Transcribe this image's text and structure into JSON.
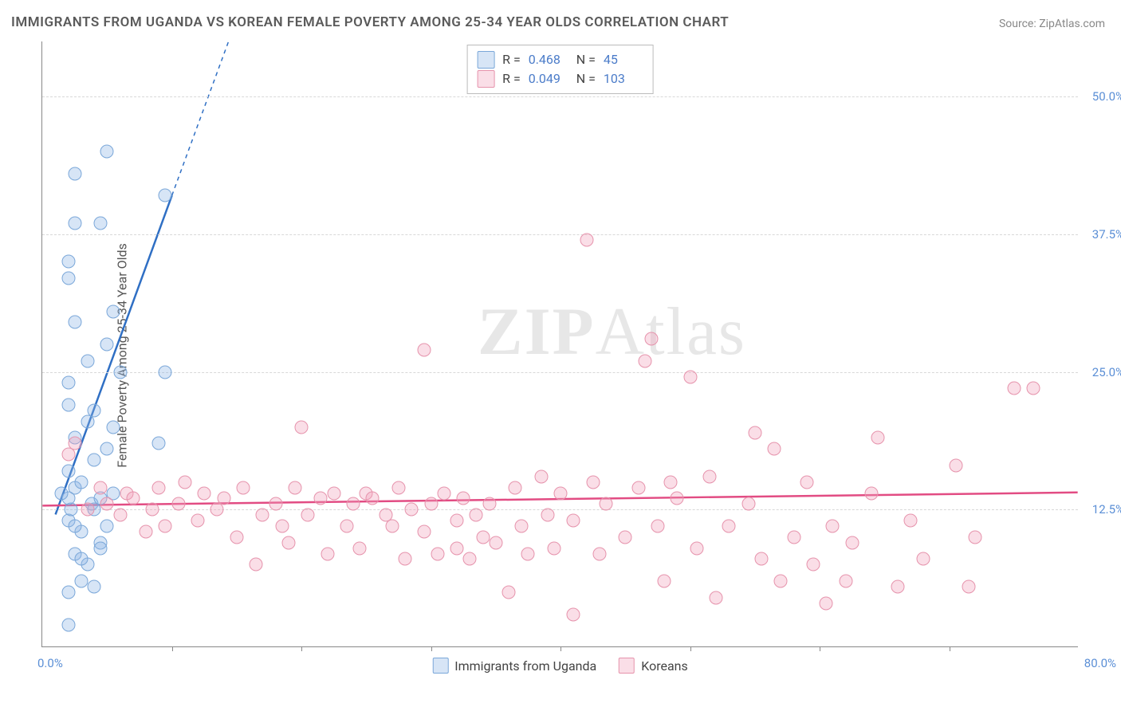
{
  "title": "IMMIGRANTS FROM UGANDA VS KOREAN FEMALE POVERTY AMONG 25-34 YEAR OLDS CORRELATION CHART",
  "source": "Source: ZipAtlas.com",
  "y_axis_label": "Female Poverty Among 25-34 Year Olds",
  "watermark": {
    "bold": "ZIP",
    "rest": "Atlas"
  },
  "chart": {
    "type": "scatter",
    "xlim": [
      0,
      80
    ],
    "ylim": [
      0,
      55
    ],
    "x_tick_positions": [
      10,
      20,
      30,
      40,
      50,
      60,
      70
    ],
    "y_gridlines": [
      12.5,
      25.0,
      37.5,
      50.0
    ],
    "y_tick_labels": [
      "12.5%",
      "25.0%",
      "37.5%",
      "50.0%"
    ],
    "x_start_label": "0.0%",
    "x_end_label": "80.0%",
    "background_color": "#ffffff",
    "grid_color": "#d8d8d8",
    "marker_radius": 8.5,
    "series": [
      {
        "name": "Immigrants from Uganda",
        "fill": "rgba(140,180,230,0.35)",
        "stroke": "#7aa7d9",
        "trend_color": "#2f6fc4",
        "trend": {
          "x1": 1.0,
          "y1": 12.0,
          "x2": 10.0,
          "y2": 41.0,
          "dashed_ext_x": 15.0,
          "dashed_ext_y": 57.0
        },
        "R": "0.468",
        "N": "45",
        "points": [
          [
            2.0,
            2.0
          ],
          [
            2.0,
            5.0
          ],
          [
            3.0,
            6.0
          ],
          [
            4.0,
            5.5
          ],
          [
            3.5,
            7.5
          ],
          [
            2.5,
            8.5
          ],
          [
            4.5,
            9.5
          ],
          [
            3.0,
            10.5
          ],
          [
            2.0,
            11.5
          ],
          [
            5.0,
            11.0
          ],
          [
            2.2,
            12.5
          ],
          [
            3.8,
            13.0
          ],
          [
            2.0,
            13.5
          ],
          [
            4.5,
            13.5
          ],
          [
            2.5,
            14.5
          ],
          [
            5.5,
            14.0
          ],
          [
            3.0,
            15.0
          ],
          [
            2.0,
            16.0
          ],
          [
            4.0,
            17.0
          ],
          [
            5.0,
            18.0
          ],
          [
            9.0,
            18.5
          ],
          [
            2.5,
            19.0
          ],
          [
            3.5,
            20.5
          ],
          [
            4.0,
            21.5
          ],
          [
            2.0,
            22.0
          ],
          [
            2.0,
            24.0
          ],
          [
            3.5,
            26.0
          ],
          [
            6.0,
            25.0
          ],
          [
            9.5,
            25.0
          ],
          [
            5.0,
            27.5
          ],
          [
            2.5,
            29.5
          ],
          [
            5.5,
            30.5
          ],
          [
            2.0,
            33.5
          ],
          [
            2.0,
            35.0
          ],
          [
            2.5,
            38.5
          ],
          [
            4.5,
            38.5
          ],
          [
            9.5,
            41.0
          ],
          [
            2.5,
            43.0
          ],
          [
            5.0,
            45.0
          ],
          [
            4.5,
            9.0
          ],
          [
            3.0,
            8.0
          ],
          [
            2.5,
            11.0
          ],
          [
            4.0,
            12.5
          ],
          [
            1.5,
            14.0
          ],
          [
            5.5,
            20.0
          ]
        ]
      },
      {
        "name": "Koreans",
        "fill": "rgba(240,160,185,0.35)",
        "stroke": "#e693ac",
        "trend_color": "#e24c83",
        "trend": {
          "x1": 0.0,
          "y1": 12.8,
          "x2": 80.0,
          "y2": 14.0
        },
        "R": "0.049",
        "N": "103",
        "points": [
          [
            2.0,
            17.5
          ],
          [
            2.5,
            18.5
          ],
          [
            3.5,
            12.5
          ],
          [
            4.5,
            14.5
          ],
          [
            5.0,
            13.0
          ],
          [
            6.0,
            12.0
          ],
          [
            6.5,
            14.0
          ],
          [
            7.0,
            13.5
          ],
          [
            8.0,
            10.5
          ],
          [
            8.5,
            12.5
          ],
          [
            9.0,
            14.5
          ],
          [
            9.5,
            11.0
          ],
          [
            10.5,
            13.0
          ],
          [
            11.0,
            15.0
          ],
          [
            12.0,
            11.5
          ],
          [
            12.5,
            14.0
          ],
          [
            13.5,
            12.5
          ],
          [
            14.0,
            13.5
          ],
          [
            15.0,
            10.0
          ],
          [
            15.5,
            14.5
          ],
          [
            16.5,
            7.5
          ],
          [
            17.0,
            12.0
          ],
          [
            18.0,
            13.0
          ],
          [
            18.5,
            11.0
          ],
          [
            19.0,
            9.5
          ],
          [
            19.5,
            14.5
          ],
          [
            20.0,
            20.0
          ],
          [
            20.5,
            12.0
          ],
          [
            21.5,
            13.5
          ],
          [
            22.0,
            8.5
          ],
          [
            22.5,
            14.0
          ],
          [
            23.5,
            11.0
          ],
          [
            24.0,
            13.0
          ],
          [
            24.5,
            9.0
          ],
          [
            25.0,
            14.0
          ],
          [
            25.5,
            13.5
          ],
          [
            26.5,
            12.0
          ],
          [
            27.0,
            11.0
          ],
          [
            27.5,
            14.5
          ],
          [
            28.0,
            8.0
          ],
          [
            28.5,
            12.5
          ],
          [
            29.5,
            10.5
          ],
          [
            29.5,
            27.0
          ],
          [
            30.0,
            13.0
          ],
          [
            30.5,
            8.5
          ],
          [
            31.0,
            14.0
          ],
          [
            32.0,
            11.5
          ],
          [
            32.0,
            9.0
          ],
          [
            32.5,
            13.5
          ],
          [
            33.0,
            8.0
          ],
          [
            33.5,
            12.0
          ],
          [
            34.0,
            10.0
          ],
          [
            34.5,
            13.0
          ],
          [
            35.0,
            9.5
          ],
          [
            36.0,
            5.0
          ],
          [
            36.5,
            14.5
          ],
          [
            37.0,
            11.0
          ],
          [
            37.5,
            8.5
          ],
          [
            38.5,
            15.5
          ],
          [
            39.0,
            12.0
          ],
          [
            39.5,
            9.0
          ],
          [
            40.0,
            14.0
          ],
          [
            41.0,
            3.0
          ],
          [
            41.0,
            11.5
          ],
          [
            42.0,
            37.0
          ],
          [
            42.5,
            15.0
          ],
          [
            43.0,
            8.5
          ],
          [
            43.5,
            13.0
          ],
          [
            45.0,
            10.0
          ],
          [
            46.0,
            14.5
          ],
          [
            46.5,
            26.0
          ],
          [
            47.0,
            28.0
          ],
          [
            47.5,
            11.0
          ],
          [
            48.0,
            6.0
          ],
          [
            49.0,
            13.5
          ],
          [
            50.0,
            24.5
          ],
          [
            50.5,
            9.0
          ],
          [
            51.5,
            15.5
          ],
          [
            52.0,
            4.5
          ],
          [
            53.0,
            11.0
          ],
          [
            54.5,
            13.0
          ],
          [
            55.0,
            19.5
          ],
          [
            55.5,
            8.0
          ],
          [
            56.5,
            18.0
          ],
          [
            57.0,
            6.0
          ],
          [
            58.0,
            10.0
          ],
          [
            59.0,
            15.0
          ],
          [
            59.5,
            7.5
          ],
          [
            60.5,
            4.0
          ],
          [
            61.0,
            11.0
          ],
          [
            62.5,
            9.5
          ],
          [
            64.0,
            14.0
          ],
          [
            64.5,
            19.0
          ],
          [
            66.0,
            5.5
          ],
          [
            67.0,
            11.5
          ],
          [
            68.0,
            8.0
          ],
          [
            70.5,
            16.5
          ],
          [
            72.0,
            10.0
          ],
          [
            75.0,
            23.5
          ],
          [
            76.5,
            23.5
          ],
          [
            71.5,
            5.5
          ],
          [
            62.0,
            6.0
          ],
          [
            48.5,
            15.0
          ]
        ]
      }
    ]
  },
  "legend_top": {
    "rows": [
      {
        "swatch_series": 0,
        "r_label": "R =",
        "r_val": "0.468",
        "n_label": "N =",
        "n_val": "45"
      },
      {
        "swatch_series": 1,
        "r_label": "R =",
        "r_val": "0.049",
        "n_label": "N =",
        "n_val": "103"
      }
    ]
  },
  "legend_bottom": [
    {
      "swatch_series": 0,
      "label": "Immigrants from Uganda"
    },
    {
      "swatch_series": 1,
      "label": "Koreans"
    }
  ]
}
